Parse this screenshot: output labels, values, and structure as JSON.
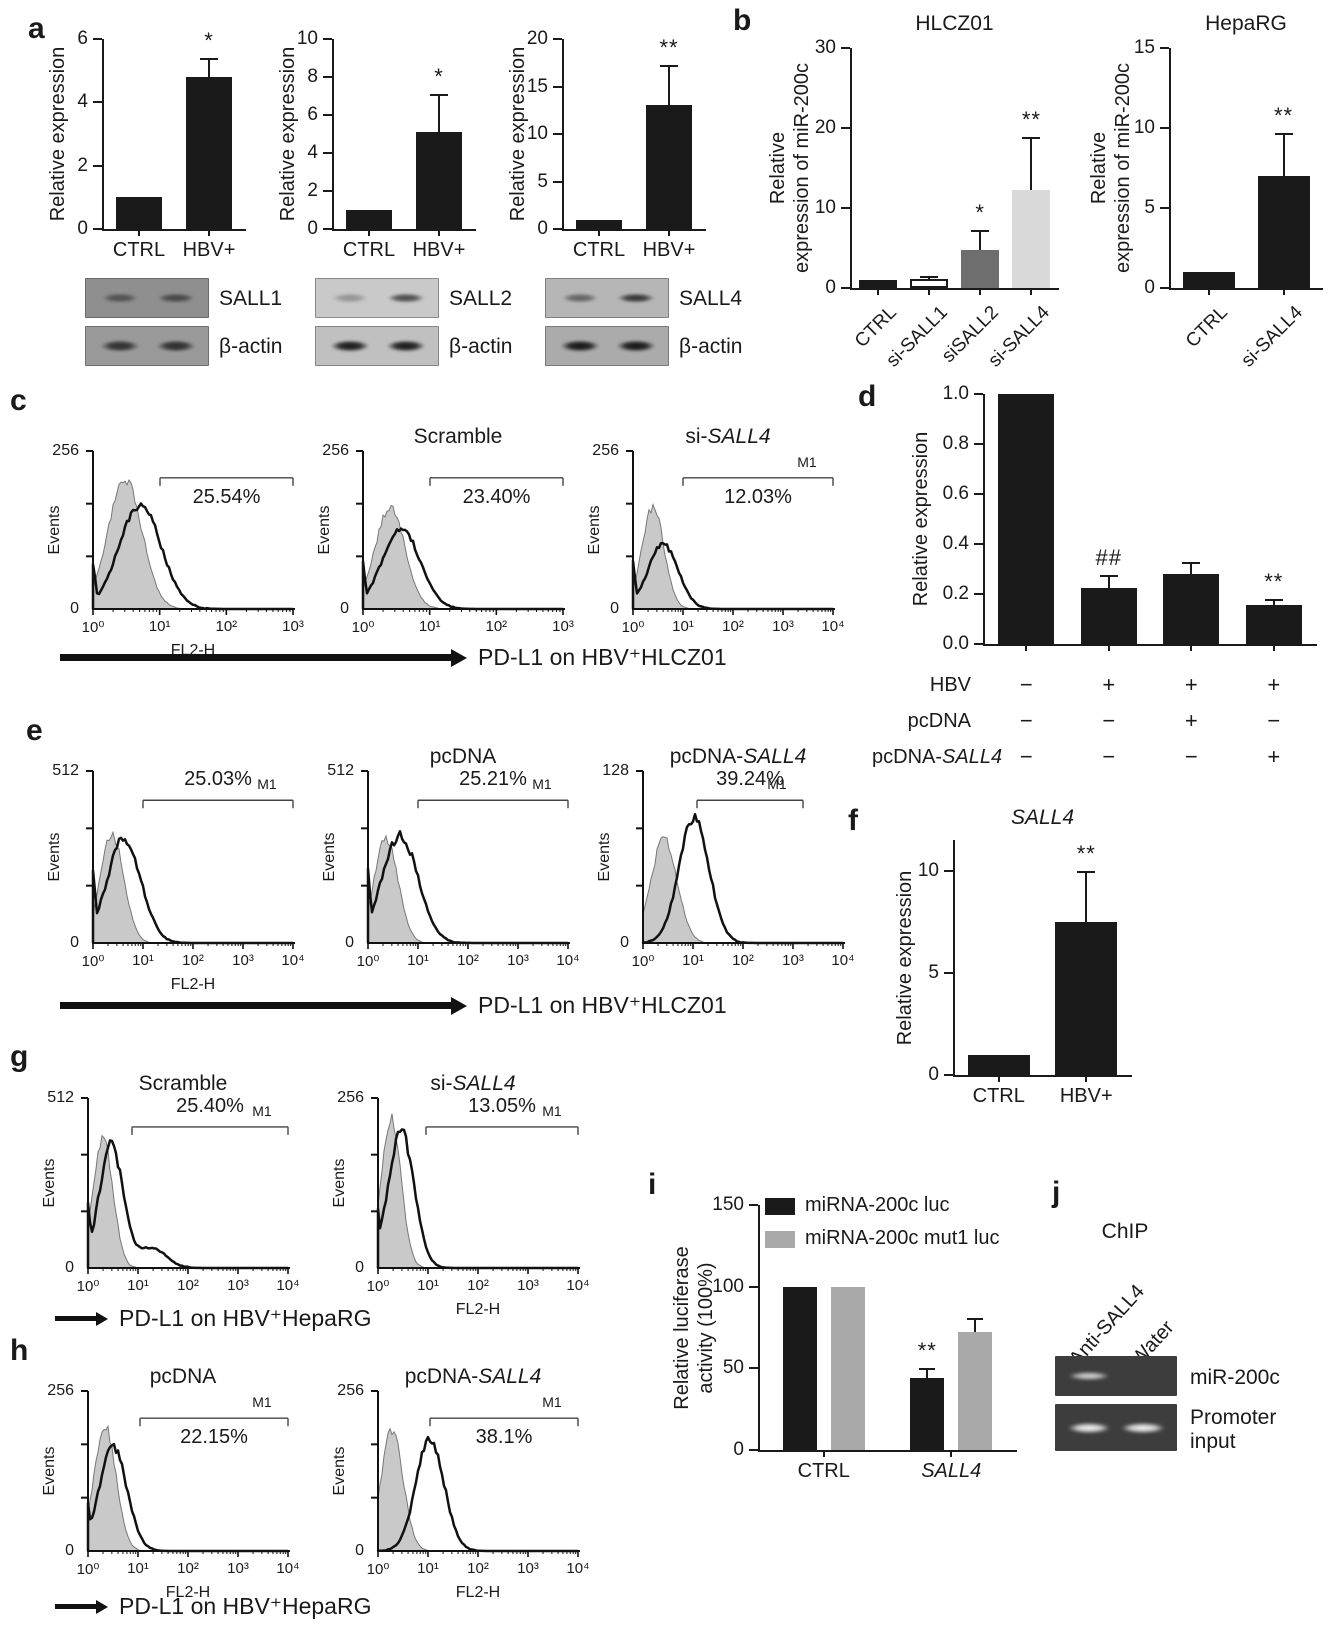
{
  "panels": {
    "a": {
      "label": "a",
      "blots": [
        {
          "protein": "SALL1",
          "loading": "β-actin"
        },
        {
          "protein": "SALL2",
          "loading": "β-actin"
        },
        {
          "protein": "SALL4",
          "loading": "β-actin"
        }
      ]
    },
    "b": {
      "label": "b"
    },
    "c": {
      "label": "c",
      "xarrow": "PD-L1 on HBV⁺HLCZ01"
    },
    "d": {
      "label": "d"
    },
    "e": {
      "label": "e",
      "xarrow": "PD-L1 on HBV⁺HLCZ01"
    },
    "f": {
      "label": "f"
    },
    "g": {
      "label": "g",
      "xarrow": "PD-L1 on HBV⁺HepaRG"
    },
    "h": {
      "label": "h",
      "xarrow": "PD-L1 on HBV⁺HepaRG"
    },
    "i": {
      "label": "i"
    },
    "j": {
      "label": "j",
      "title": "ChIP",
      "lanes": [
        "Anti-SALL4",
        "Water"
      ],
      "rows": [
        {
          "label": "miR-200c"
        },
        {
          "label": "Promoter input"
        }
      ]
    }
  },
  "chart_data": [
    {
      "id": "a1",
      "type": "bar",
      "title": "",
      "ylabel": "Relative expression",
      "categories": [
        "CTRL",
        "HBV+"
      ],
      "values": [
        1,
        4.8
      ],
      "errors": [
        0,
        0.6
      ],
      "sig": [
        "",
        "*"
      ],
      "yticks": [
        0,
        2,
        4,
        6
      ],
      "ylim": [
        0,
        6
      ]
    },
    {
      "id": "a2",
      "type": "bar",
      "title": "",
      "ylabel": "Relative expression",
      "categories": [
        "CTRL",
        "HBV+"
      ],
      "values": [
        1,
        5.1
      ],
      "errors": [
        0,
        2.0
      ],
      "sig": [
        "",
        "*"
      ],
      "yticks": [
        0,
        2,
        4,
        6,
        8,
        10
      ],
      "ylim": [
        0,
        10
      ]
    },
    {
      "id": "a3",
      "type": "bar",
      "title": "",
      "ylabel": "Relative expression",
      "categories": [
        "CTRL",
        "HBV+"
      ],
      "values": [
        1,
        13.1
      ],
      "errors": [
        0,
        4.2
      ],
      "sig": [
        "",
        "**"
      ],
      "yticks": [
        0,
        5,
        10,
        15,
        20
      ],
      "ylim": [
        0,
        20
      ]
    },
    {
      "id": "b1",
      "type": "bar",
      "title": "HLCZ01",
      "ylabel": "Relative expression of miR-200c",
      "ylabel_lines": [
        "Relative",
        "expression of miR-200c"
      ],
      "categories": [
        "CTRL",
        "si-SALL1",
        "siSALL2",
        "si-SALL4"
      ],
      "values": [
        1,
        1.1,
        4.7,
        12.3
      ],
      "errors": [
        0,
        0.4,
        2.6,
        6.6
      ],
      "sig": [
        "",
        "",
        "*",
        "**"
      ],
      "colors": [
        "#1a1a1a",
        "#ffffff",
        "#6e6e6e",
        "#d9d9d9"
      ],
      "yticks": [
        0,
        10,
        20,
        30
      ],
      "ylim": [
        0,
        30
      ]
    },
    {
      "id": "b2",
      "type": "bar",
      "title": "HepaRG",
      "ylabel": "Relative expression of miR-200c",
      "ylabel_lines": [
        "Relative",
        "expression of miR-200c"
      ],
      "categories": [
        "CTRL",
        "si-SALL4"
      ],
      "values": [
        1,
        7.0
      ],
      "errors": [
        0,
        2.7
      ],
      "sig": [
        "",
        "**"
      ],
      "yticks": [
        0,
        5,
        10,
        15
      ],
      "ylim": [
        0,
        15
      ]
    },
    {
      "id": "d",
      "type": "bar",
      "title": "",
      "ylabel": "Relative expression",
      "values": [
        1.0,
        0.225,
        0.28,
        0.155
      ],
      "errors": [
        0,
        0.05,
        0.05,
        0.025
      ],
      "sig": [
        "",
        "##",
        "",
        "**"
      ],
      "yticks": [
        "0.0",
        "0.2",
        "0.4",
        "0.6",
        "0.8",
        "1.0"
      ],
      "ylim": [
        0,
        1
      ],
      "condition_rows": [
        {
          "label": "HBV",
          "values": [
            "−",
            "+",
            "+",
            "+"
          ]
        },
        {
          "label": "pcDNA",
          "values": [
            "−",
            "−",
            "+",
            "−"
          ]
        },
        {
          "label": {
            "pre": "pcDNA-",
            "it": "SALL4"
          },
          "values": [
            "−",
            "−",
            "−",
            "+"
          ]
        }
      ]
    },
    {
      "id": "f",
      "type": "bar",
      "title": {
        "it": "SALL4"
      },
      "ylabel": "Relative expression",
      "categories": [
        "CTRL",
        "HBV+"
      ],
      "values": [
        1,
        7.5
      ],
      "errors": [
        0,
        2.5
      ],
      "sig": [
        "",
        "**"
      ],
      "yticks": [
        0,
        5,
        10
      ],
      "ylim": [
        0,
        11.5
      ]
    },
    {
      "id": "i",
      "type": "grouped_bar",
      "ylabel": "Relative luciferase activity (100%)",
      "ylabel_lines": [
        "Relative luciferase",
        "activity (100%)"
      ],
      "categories": [
        "CTRL",
        {
          "it": "SALL4"
        }
      ],
      "series": [
        {
          "name": "miRNA-200c luc",
          "color": "#1a1a1a",
          "values": [
            100,
            44
          ],
          "errors": [
            0,
            6
          ],
          "sig": [
            "",
            "**"
          ]
        },
        {
          "name": "miRNA-200c mut1 luc",
          "color": "#a9a9a9",
          "values": [
            100,
            72
          ],
          "errors": [
            0,
            9
          ],
          "sig": [
            "",
            ""
          ]
        }
      ],
      "yticks": [
        0,
        50,
        100,
        150
      ],
      "ylim": [
        0,
        150
      ],
      "legend_position": "top-left"
    },
    {
      "id": "c1",
      "type": "flow_histogram",
      "title": "",
      "percent": "25.54%",
      "marker": "",
      "ylabel": "Events",
      "yticks": [
        "0",
        "256"
      ],
      "xlabel": "FL2-H",
      "xticks": [
        "10⁰",
        "10¹",
        "10²",
        "10³"
      ]
    },
    {
      "id": "c2",
      "type": "flow_histogram",
      "title": "Scramble",
      "percent": "23.40%",
      "marker": "",
      "ylabel": "Events",
      "yticks": [
        "0",
        "256"
      ],
      "xlabel": "",
      "xticks": [
        "10⁰",
        "10¹",
        "10²",
        "10³"
      ]
    },
    {
      "id": "c3",
      "type": "flow_histogram",
      "title": {
        "pre": "si-",
        "it": "SALL4"
      },
      "percent": "12.03%",
      "marker": "M1",
      "ylabel": "Events",
      "yticks": [
        "0",
        "256"
      ],
      "xlabel": "",
      "xticks": [
        "10⁰",
        "10¹",
        "10²",
        "10³",
        "10⁴"
      ]
    },
    {
      "id": "e1",
      "type": "flow_histogram",
      "title": "",
      "percent": "25.03%",
      "marker": "M1",
      "ylabel": "Events",
      "yticks": [
        "0",
        "512"
      ],
      "xlabel": "FL2-H",
      "xticks": [
        "10⁰",
        "10¹",
        "10²",
        "10³",
        "10⁴"
      ]
    },
    {
      "id": "e2",
      "type": "flow_histogram",
      "title": "pcDNA",
      "percent": "25.21%",
      "marker": "M1",
      "ylabel": "Events",
      "yticks": [
        "0",
        "512"
      ],
      "xlabel": "",
      "xticks": [
        "10⁰",
        "10¹",
        "10²",
        "10³",
        "10⁴"
      ]
    },
    {
      "id": "e3",
      "type": "flow_histogram",
      "title": {
        "pre": "pcDNA-",
        "it": "SALL4"
      },
      "percent": "39.24%",
      "marker": "M1",
      "ylabel": "Events",
      "yticks": [
        "0",
        "128"
      ],
      "xlabel": "",
      "xticks": [
        "10⁰",
        "10¹",
        "10²",
        "10³",
        "10⁴"
      ]
    },
    {
      "id": "g1",
      "type": "flow_histogram",
      "title": "Scramble",
      "percent": "25.40%",
      "marker": "M1",
      "ylabel": "Events",
      "yticks": [
        "0",
        "512"
      ],
      "xlabel": "",
      "xticks": [
        "10⁰",
        "10¹",
        "10²",
        "10³",
        "10⁴"
      ]
    },
    {
      "id": "g2",
      "type": "flow_histogram",
      "title": {
        "pre": "si-",
        "it": "SALL4"
      },
      "percent": "13.05%",
      "marker": "M1",
      "ylabel": "Events",
      "yticks": [
        "0",
        "256"
      ],
      "xlabel": "FL2-H",
      "xticks": [
        "10⁰",
        "10¹",
        "10²",
        "10³",
        "10⁴"
      ]
    },
    {
      "id": "h1",
      "type": "flow_histogram",
      "title": "pcDNA",
      "percent": "22.15%",
      "marker": "M1",
      "ylabel": "Events",
      "yticks": [
        "0",
        "256"
      ],
      "xlabel": "FL2-H",
      "xticks": [
        "10⁰",
        "10¹",
        "10²",
        "10³",
        "10⁴"
      ]
    },
    {
      "id": "h2",
      "type": "flow_histogram",
      "title": {
        "pre": "pcDNA-",
        "it": "SALL4"
      },
      "percent": "38.1%",
      "marker": "M1",
      "ylabel": "Events",
      "yticks": [
        "0",
        "256"
      ],
      "xlabel": "FL2-H",
      "xticks": [
        "10⁰",
        "10¹",
        "10²",
        "10³",
        "10⁴"
      ]
    }
  ],
  "colors": {
    "bar_black": "#1a1a1a",
    "bar_white": "#ffffff",
    "bar_darkgray": "#6e6e6e",
    "bar_lightgray": "#d9d9d9",
    "series_gray": "#a9a9a9",
    "hist_fill": "#c9c9c9"
  }
}
